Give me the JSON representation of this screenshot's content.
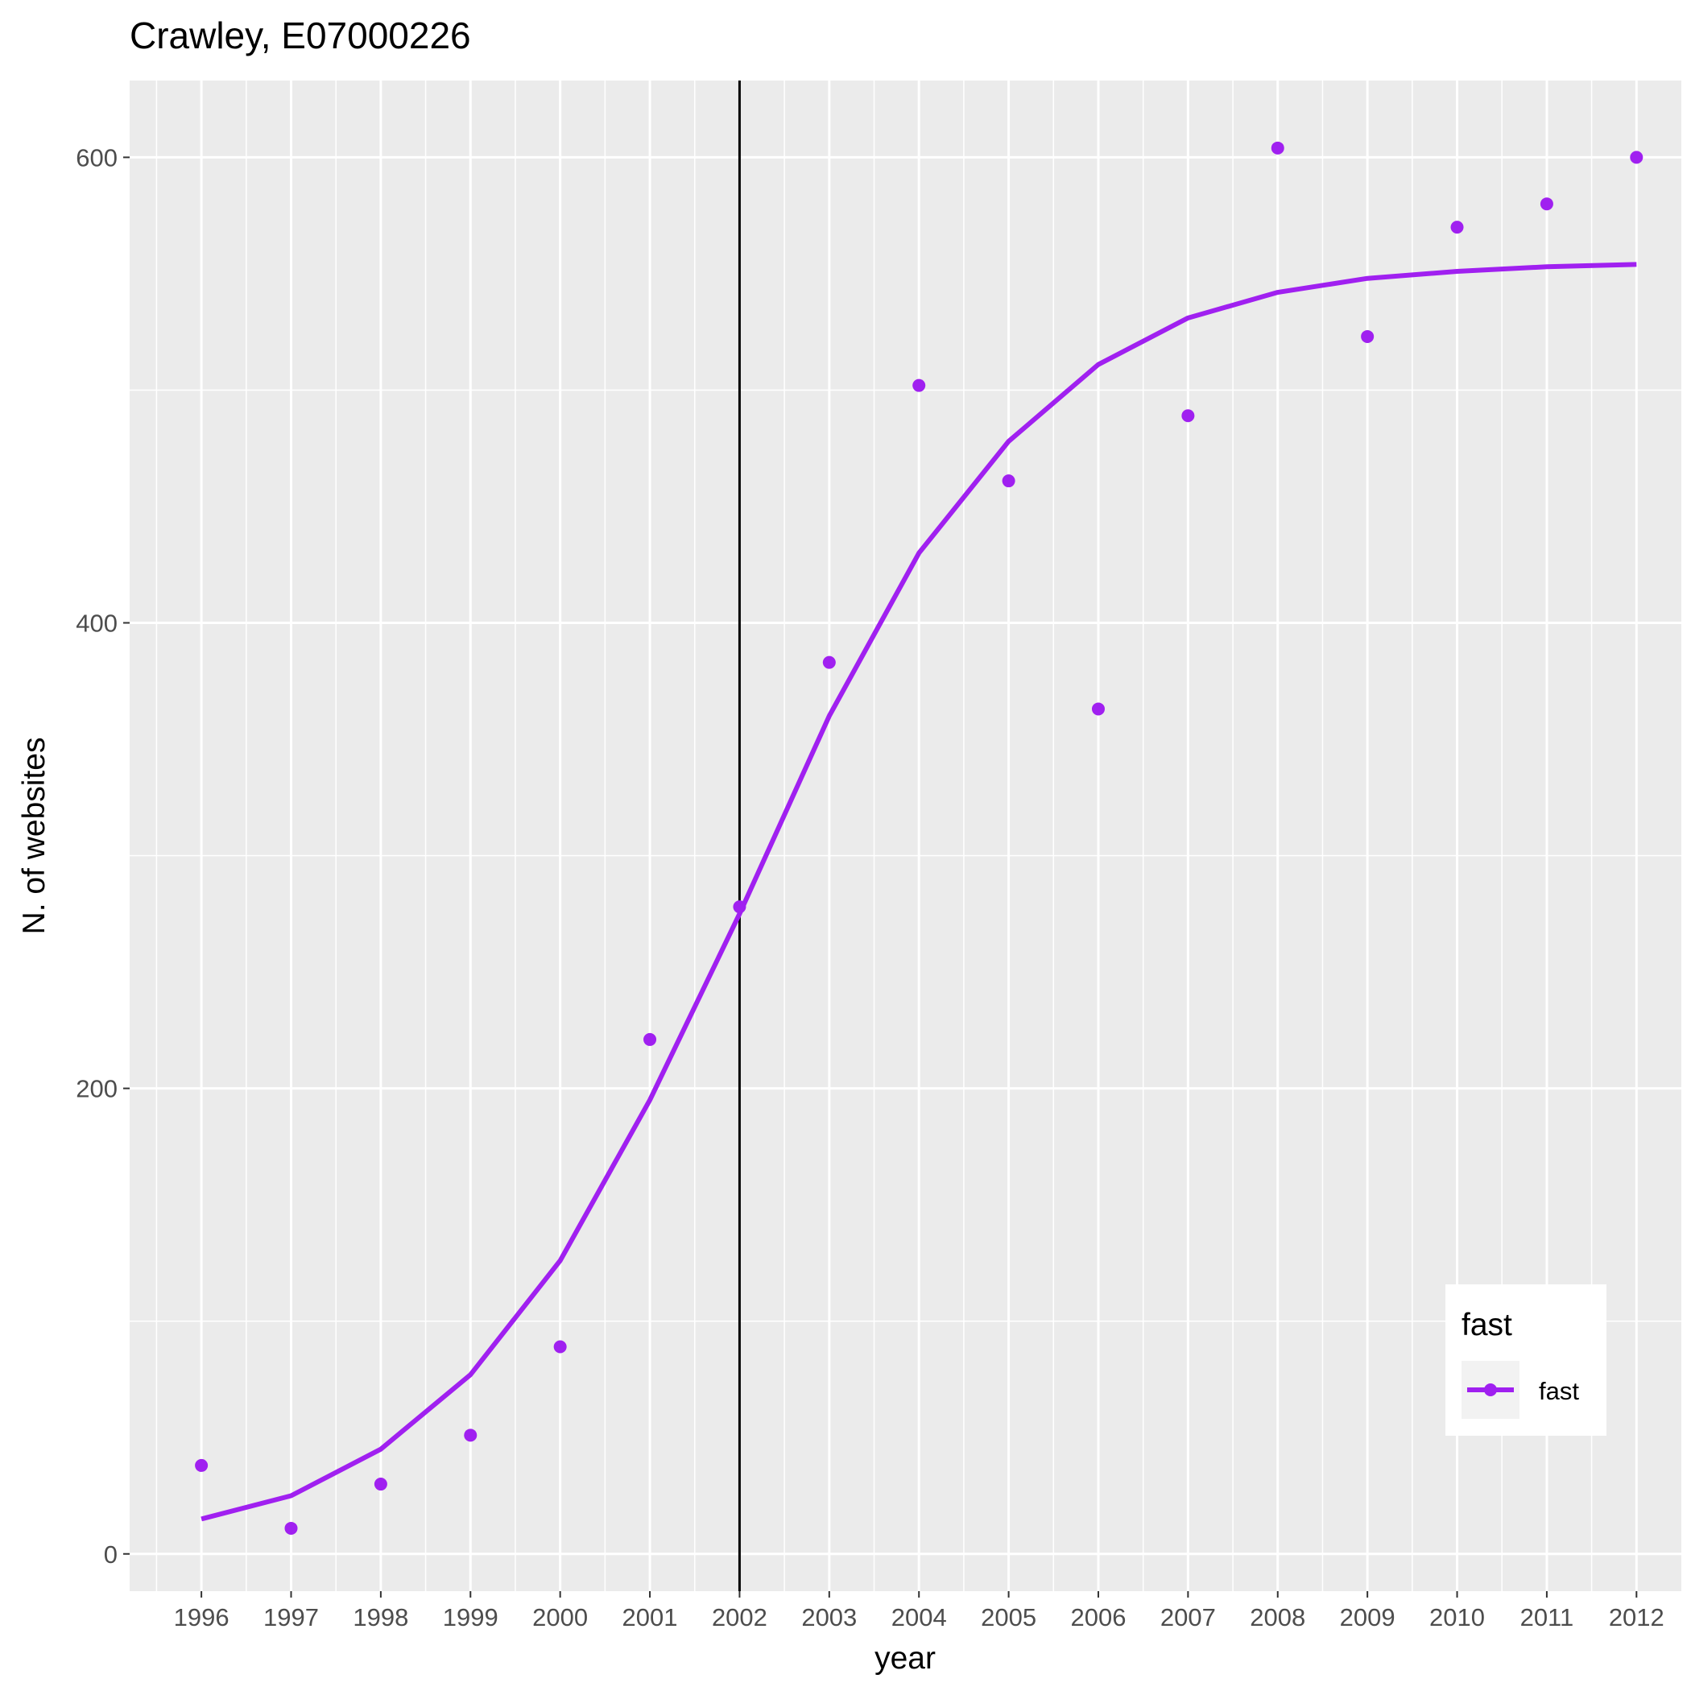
{
  "chart_data": {
    "type": "line",
    "title": "Crawley, E07000226",
    "xlabel": "year",
    "ylabel": "N. of websites",
    "x": [
      1996,
      1997,
      1998,
      1999,
      2000,
      2001,
      2002,
      2003,
      2004,
      2005,
      2006,
      2007,
      2008,
      2009,
      2010,
      2011,
      2012
    ],
    "x_tick_labels": [
      "1996",
      "1997",
      "1998",
      "1999",
      "2000",
      "2001",
      "2002",
      "2003",
      "2004",
      "2005",
      "2006",
      "2007",
      "2008",
      "2009",
      "2010",
      "2011",
      "2012"
    ],
    "y_ticks": [
      0,
      200,
      400,
      600
    ],
    "y_tick_labels": [
      "0",
      "200",
      "400",
      "600"
    ],
    "xlim": [
      1995.2,
      2012.5
    ],
    "ylim": [
      -16,
      633
    ],
    "grid": true,
    "vline_x": 2002,
    "series": [
      {
        "name": "fast",
        "color": "#a020f0",
        "points": [
          38,
          11,
          30,
          51,
          89,
          221,
          278,
          383,
          502,
          461,
          363,
          489,
          604,
          523,
          570,
          580,
          600
        ],
        "fitted": [
          15,
          25,
          45,
          77,
          126,
          195,
          275,
          360,
          430,
          478,
          511,
          531,
          542,
          548,
          551,
          553,
          554
        ]
      }
    ],
    "legend": {
      "title": "fast",
      "entries": [
        "fast"
      ],
      "position": "bottom-right"
    }
  }
}
